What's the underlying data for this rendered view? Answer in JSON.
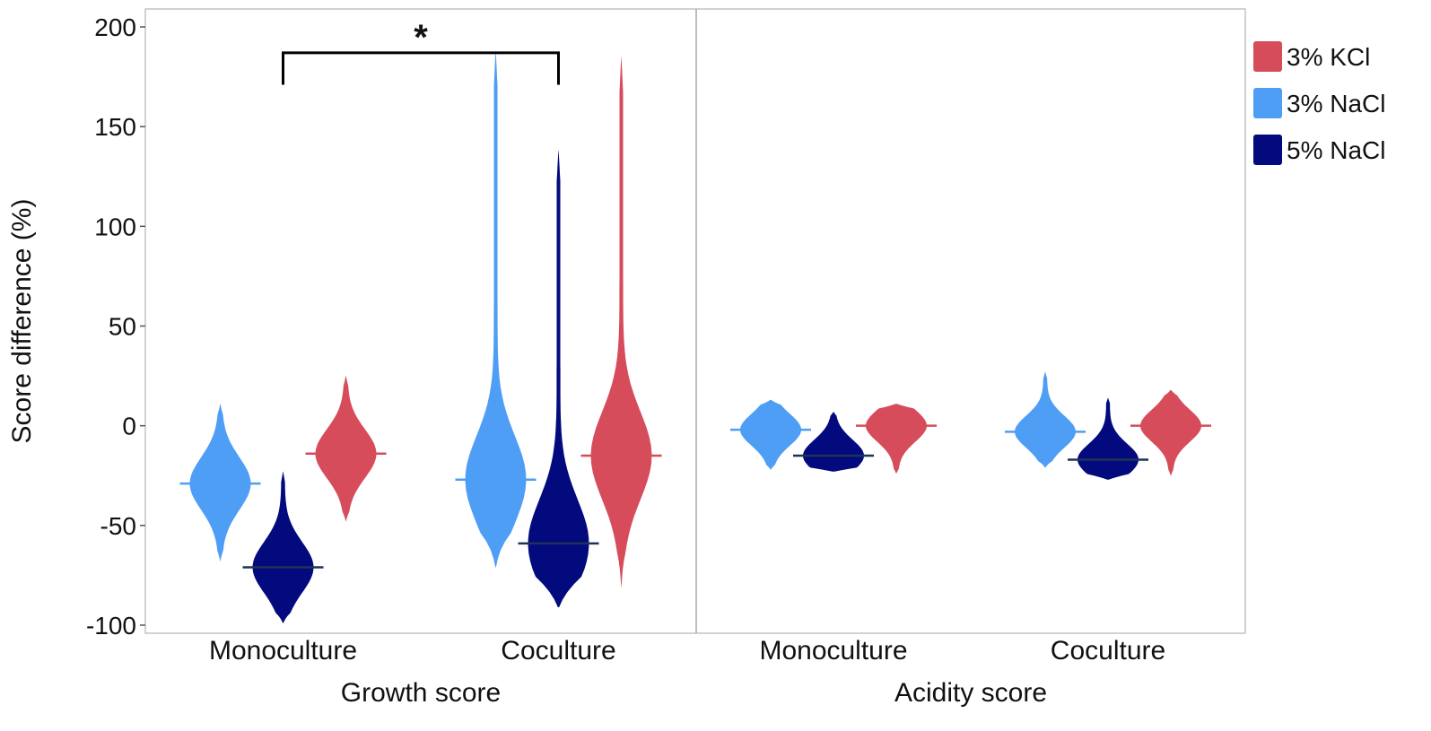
{
  "chart_data": {
    "type": "violin",
    "ylabel": "Score difference (%)",
    "ylim": [
      -100,
      200
    ],
    "yticks": [
      -100,
      -50,
      0,
      50,
      100,
      150,
      200
    ],
    "grid": false,
    "legend": {
      "position": "right",
      "entries": [
        {
          "name": "3% KCl",
          "color": "#d64c5b"
        },
        {
          "name": "3% NaCl",
          "color": "#4f9ef5"
        },
        {
          "name": "5% NaCl",
          "color": "#020a7d"
        }
      ]
    },
    "panels": [
      {
        "name": "Growth score",
        "categories": [
          "Monoculture",
          "Coculture"
        ],
        "significance": {
          "label": "*",
          "between": [
            "Monoculture",
            "Coculture"
          ]
        },
        "groups": [
          {
            "category": "Monoculture",
            "series": "3% NaCl",
            "min": -68,
            "max": 11,
            "median": -29
          },
          {
            "category": "Monoculture",
            "series": "5% NaCl",
            "min": -99,
            "max": -23,
            "median": -71
          },
          {
            "category": "Monoculture",
            "series": "3% KCl",
            "min": -48,
            "max": 25,
            "median": -14
          },
          {
            "category": "Coculture",
            "series": "3% NaCl",
            "min": -71,
            "max": 188,
            "median": -27
          },
          {
            "category": "Coculture",
            "series": "5% NaCl",
            "min": -91,
            "max": 138,
            "median": -59
          },
          {
            "category": "Coculture",
            "series": "3% KCl",
            "min": -81,
            "max": 185,
            "median": -15
          }
        ]
      },
      {
        "name": "Acidity score",
        "categories": [
          "Monoculture",
          "Coculture"
        ],
        "groups": [
          {
            "category": "Monoculture",
            "series": "3% NaCl",
            "min": -22,
            "max": 13,
            "median": -2
          },
          {
            "category": "Monoculture",
            "series": "5% NaCl",
            "min": -23,
            "max": 7,
            "median": -15
          },
          {
            "category": "Monoculture",
            "series": "3% KCl",
            "min": -24,
            "max": 11,
            "median": 0
          },
          {
            "category": "Coculture",
            "series": "3% NaCl",
            "min": -21,
            "max": 27,
            "median": -3
          },
          {
            "category": "Coculture",
            "series": "5% NaCl",
            "min": -27,
            "max": 14,
            "median": -17
          },
          {
            "category": "Coculture",
            "series": "3% KCl",
            "min": -25,
            "max": 18,
            "median": 0
          }
        ]
      }
    ]
  }
}
